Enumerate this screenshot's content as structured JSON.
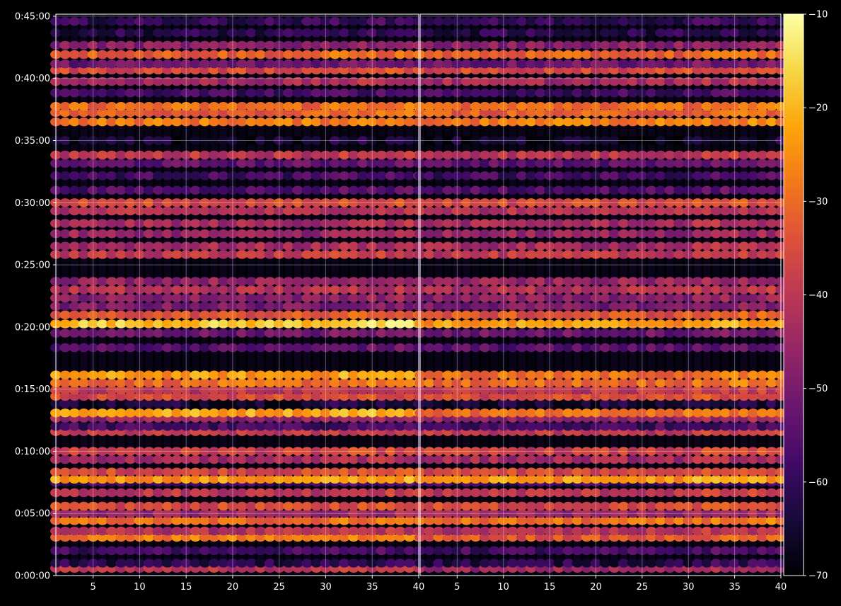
{
  "chart_data": {
    "type": "heatmap",
    "title": "",
    "xlabel": "",
    "ylabel": "",
    "panels": [
      {
        "name": "left",
        "xlim": [
          1,
          40
        ],
        "x_ticks": [
          "5",
          "10",
          "15",
          "20",
          "25",
          "30",
          "35",
          "40"
        ],
        "x_tick_values": [
          5,
          10,
          15,
          20,
          25,
          30,
          35,
          40
        ]
      },
      {
        "name": "right",
        "xlim": [
          1,
          40
        ],
        "x_ticks": [
          "5",
          "10",
          "15",
          "20",
          "25",
          "30",
          "35",
          "40"
        ],
        "x_tick_values": [
          5,
          10,
          15,
          20,
          25,
          30,
          35,
          40
        ]
      }
    ],
    "y_ticks": [
      "0:00:00",
      "0:05:00",
      "0:10:00",
      "0:15:00",
      "0:20:00",
      "0:25:00",
      "0:30:00",
      "0:35:00",
      "0:40:00",
      "0:45:00"
    ],
    "y_tick_seconds": [
      0,
      300,
      600,
      900,
      1200,
      1500,
      1800,
      2100,
      2400,
      2700
    ],
    "ylim_seconds": [
      0,
      2710
    ],
    "grid": true,
    "colormap": "inferno",
    "colorbar": {
      "vmin": -70,
      "vmax": -10,
      "ticks": [
        "−70",
        "−60",
        "−50",
        "−40",
        "−30",
        "−20",
        "−10"
      ],
      "tick_values": [
        -70,
        -60,
        -50,
        -40,
        -30,
        -20,
        -10
      ]
    },
    "bands_seconds": [
      {
        "t": 35,
        "level": -40,
        "right_level": -45
      },
      {
        "t": 60,
        "level": -62
      },
      {
        "t": 120,
        "level": -58
      },
      {
        "t": 185,
        "level": -28,
        "right_level": -34
      },
      {
        "t": 215,
        "level": -42
      },
      {
        "t": 265,
        "level": -30
      },
      {
        "t": 300,
        "level": -46
      },
      {
        "t": 335,
        "level": -36
      },
      {
        "t": 400,
        "level": -40
      },
      {
        "t": 450,
        "level": -60
      },
      {
        "t": 465,
        "level": -24
      },
      {
        "t": 500,
        "level": -36
      },
      {
        "t": 560,
        "level": -44
      },
      {
        "t": 600,
        "level": -38
      },
      {
        "t": 695,
        "level": -40
      },
      {
        "t": 720,
        "level": -58
      },
      {
        "t": 760,
        "level": -46
      },
      {
        "t": 785,
        "level": -22,
        "right_level": -30
      },
      {
        "t": 830,
        "level": -64
      },
      {
        "t": 865,
        "level": -36
      },
      {
        "t": 895,
        "level": -40
      },
      {
        "t": 930,
        "level": -30
      },
      {
        "t": 968,
        "level": -24,
        "right_level": -30
      },
      {
        "t": 1100,
        "level": -55
      },
      {
        "t": 1170,
        "level": -52
      },
      {
        "t": 1215,
        "level": -18,
        "right_level": -24
      },
      {
        "t": 1258,
        "level": -34
      },
      {
        "t": 1300,
        "level": -50
      },
      {
        "t": 1340,
        "level": -48
      },
      {
        "t": 1380,
        "level": -42
      },
      {
        "t": 1420,
        "level": -46
      },
      {
        "t": 1550,
        "level": -40
      },
      {
        "t": 1590,
        "level": -44
      },
      {
        "t": 1650,
        "level": -46
      },
      {
        "t": 1700,
        "level": -44
      },
      {
        "t": 1760,
        "level": -42
      },
      {
        "t": 1800,
        "level": -36
      },
      {
        "t": 1860,
        "level": -56
      },
      {
        "t": 1930,
        "level": -58
      },
      {
        "t": 1990,
        "level": -54
      },
      {
        "t": 2030,
        "level": -40
      },
      {
        "t": 2100,
        "level": -66
      },
      {
        "t": 2190,
        "level": -28
      },
      {
        "t": 2235,
        "level": -32
      },
      {
        "t": 2265,
        "level": -30
      },
      {
        "t": 2330,
        "level": -58
      },
      {
        "t": 2385,
        "level": -44
      },
      {
        "t": 2440,
        "level": -36
      },
      {
        "t": 2470,
        "level": -52
      },
      {
        "t": 2515,
        "level": -32
      },
      {
        "t": 2560,
        "level": -48
      },
      {
        "t": 2620,
        "level": -62
      },
      {
        "t": 2675,
        "level": -60
      }
    ]
  }
}
